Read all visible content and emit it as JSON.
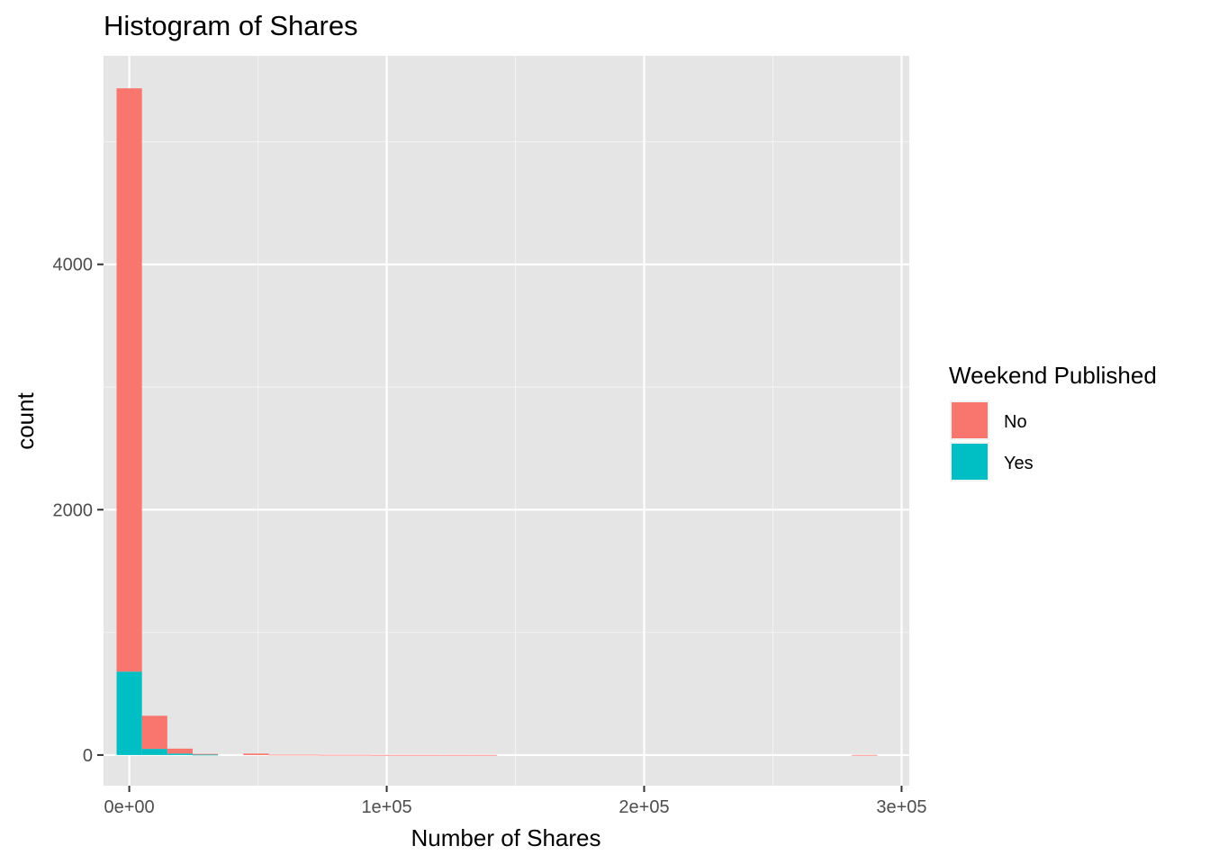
{
  "chart_data": {
    "type": "bar",
    "subtype": "stacked-histogram",
    "title": "Histogram of Shares",
    "xlabel": "Number of Shares",
    "ylabel": "count",
    "xlim": [
      -10000,
      303000
    ],
    "ylim": [
      -250,
      5700
    ],
    "x_ticks": [
      0,
      100000,
      200000,
      300000
    ],
    "x_tick_labels": [
      "0e+00",
      "1e+05",
      "2e+05",
      "3e+05"
    ],
    "y_ticks": [
      0,
      2000,
      4000
    ],
    "y_tick_labels": [
      "0",
      "2000",
      "4000"
    ],
    "x_minor": [
      50000,
      150000,
      250000
    ],
    "y_minor": [
      1000,
      3000,
      5000
    ],
    "grid": true,
    "background": "#e5e5e5",
    "legend": {
      "title": "Weekend Published",
      "position": "right",
      "entries": [
        {
          "label": "No",
          "color": "#f8766d"
        },
        {
          "label": "Yes",
          "color": "#00bfc4"
        }
      ]
    },
    "bin_width": 9850,
    "bins": [
      {
        "x0": -4925,
        "x1": 4925,
        "no": 4755,
        "yes": 680
      },
      {
        "x0": 4925,
        "x1": 14775,
        "no": 270,
        "yes": 50
      },
      {
        "x0": 14775,
        "x1": 24625,
        "no": 40,
        "yes": 12
      },
      {
        "x0": 24625,
        "x1": 34475,
        "no": 6,
        "yes": 3
      },
      {
        "x0": 44325,
        "x1": 54175,
        "no": 12,
        "yes": 0
      },
      {
        "x0": 54175,
        "x1": 64025,
        "no": 3,
        "yes": 0
      },
      {
        "x0": 64025,
        "x1": 73875,
        "no": 3,
        "yes": 0
      },
      {
        "x0": 73875,
        "x1": 83725,
        "no": 2,
        "yes": 0
      },
      {
        "x0": 83725,
        "x1": 93575,
        "no": 2,
        "yes": 0
      },
      {
        "x0": 93575,
        "x1": 103425,
        "no": 1,
        "yes": 0
      },
      {
        "x0": 103425,
        "x1": 113275,
        "no": 1,
        "yes": 0
      },
      {
        "x0": 113275,
        "x1": 123125,
        "no": 1,
        "yes": 0
      },
      {
        "x0": 123125,
        "x1": 132975,
        "no": 1,
        "yes": 0
      },
      {
        "x0": 132975,
        "x1": 142825,
        "no": 1,
        "yes": 0
      },
      {
        "x0": 280725,
        "x1": 290575,
        "no": 1,
        "yes": 0
      }
    ]
  }
}
